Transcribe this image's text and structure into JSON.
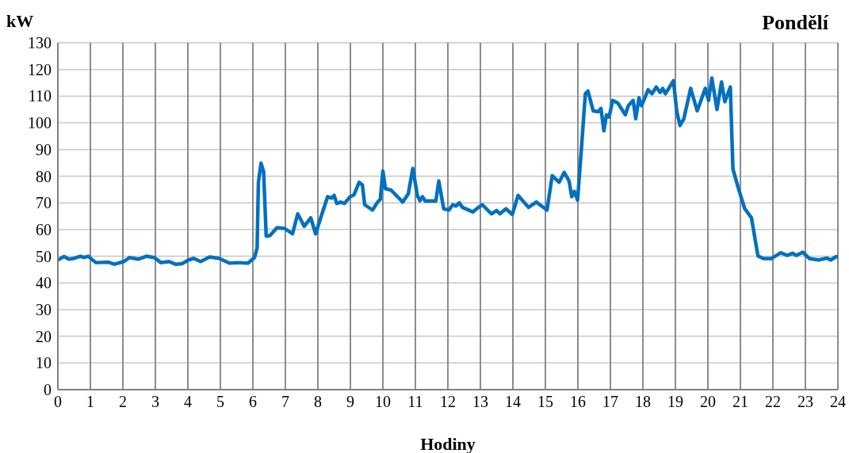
{
  "chart_data": {
    "type": "line",
    "title": "Pondělí",
    "xlabel": "Hodiny",
    "ylabel": "kW",
    "x": [
      0,
      0.19,
      0.33,
      0.5,
      0.69,
      0.8,
      0.93,
      1.17,
      1.54,
      1.74,
      2.03,
      2.2,
      2.48,
      2.72,
      2.97,
      3.17,
      3.42,
      3.62,
      3.82,
      4.02,
      4.18,
      4.39,
      4.67,
      4.96,
      5.28,
      5.52,
      5.85,
      6.05,
      6.13,
      6.17,
      6.25,
      6.33,
      6.41,
      6.53,
      6.74,
      6.98,
      7.22,
      7.38,
      7.58,
      7.78,
      7.93,
      8.14,
      8.3,
      8.42,
      8.5,
      8.58,
      8.7,
      8.82,
      8.99,
      9.11,
      9.27,
      9.37,
      9.44,
      9.68,
      9.84,
      9.92,
      10.0,
      10.08,
      10.25,
      10.61,
      10.78,
      10.92,
      11.06,
      11.14,
      11.22,
      11.3,
      11.63,
      11.72,
      11.87,
      12.03,
      12.15,
      12.25,
      12.35,
      12.45,
      12.77,
      12.94,
      13.06,
      13.34,
      13.5,
      13.6,
      13.79,
      13.98,
      14.16,
      14.48,
      14.72,
      15.05,
      15.21,
      15.42,
      15.58,
      15.73,
      15.81,
      15.89,
      15.99,
      16.11,
      16.23,
      16.31,
      16.47,
      16.63,
      16.71,
      16.8,
      16.88,
      16.96,
      17.07,
      17.23,
      17.46,
      17.55,
      17.7,
      17.78,
      17.88,
      17.96,
      18.16,
      18.28,
      18.41,
      18.53,
      18.61,
      18.69,
      18.82,
      18.94,
      19.04,
      19.14,
      19.26,
      19.47,
      19.67,
      19.92,
      20.02,
      20.12,
      20.28,
      20.42,
      20.52,
      20.69,
      20.77,
      20.93,
      21.13,
      21.34,
      21.54,
      21.71,
      21.95,
      22.24,
      22.44,
      22.6,
      22.72,
      22.92,
      23.13,
      23.41,
      23.66,
      23.78,
      23.94,
      24
    ],
    "series": [
      {
        "color": "#0070c0",
        "values": [
          48.6,
          49.9,
          48.9,
          49.2,
          50,
          49.5,
          50,
          47.6,
          47.8,
          47,
          48,
          49.5,
          48.9,
          50,
          49.5,
          47.6,
          48,
          47,
          47.2,
          48.6,
          49.2,
          48,
          49.7,
          49.2,
          47.4,
          47.6,
          47.4,
          49.5,
          53,
          77.7,
          84.9,
          81.7,
          57.5,
          57.8,
          60.7,
          60.4,
          58.4,
          65.9,
          61.2,
          64.4,
          58.4,
          66.4,
          72.3,
          71.8,
          72.8,
          69.8,
          70.3,
          69.8,
          72.3,
          73,
          77.7,
          76.7,
          69.3,
          67.3,
          70.3,
          71.3,
          81.9,
          75.3,
          74.8,
          70.3,
          73.3,
          82.9,
          72.8,
          70.8,
          72.3,
          70.7,
          70.7,
          78.2,
          67.8,
          67.3,
          69.3,
          68.8,
          70,
          68.3,
          66.6,
          68.3,
          69.3,
          65.9,
          67.1,
          65.9,
          67.8,
          65.6,
          72.8,
          68.3,
          70.3,
          67.3,
          80.2,
          77.7,
          81.4,
          78.2,
          72.3,
          74.3,
          71,
          90.6,
          110.9,
          111.9,
          104.5,
          104.2,
          105.4,
          97,
          103,
          102.2,
          108.4,
          107.4,
          103,
          106.4,
          108.4,
          101.5,
          109.4,
          106.4,
          112.4,
          110.9,
          113.4,
          111.4,
          112.9,
          110.9,
          113.4,
          115.8,
          104.5,
          99,
          101.5,
          112.9,
          104.5,
          112.9,
          108.4,
          116.8,
          105,
          115.3,
          107.9,
          113.4,
          82.7,
          75.8,
          67.9,
          64.4,
          50.1,
          49.1,
          49.1,
          51.3,
          50.3,
          51.1,
          50.3,
          51.5,
          49.1,
          48.6,
          49.3,
          48.6,
          49.8,
          49.8
        ]
      }
    ],
    "xlim": [
      0,
      24
    ],
    "xticks": [
      0,
      1,
      2,
      3,
      4,
      5,
      6,
      7,
      8,
      9,
      10,
      11,
      12,
      13,
      14,
      15,
      16,
      17,
      18,
      19,
      20,
      21,
      22,
      23,
      24
    ],
    "ylim": [
      0,
      130
    ],
    "yticks": [
      0,
      10,
      20,
      30,
      40,
      50,
      60,
      70,
      80,
      90,
      100,
      110,
      120,
      130
    ],
    "grid": true,
    "legend": false,
    "marker": "none",
    "line_style": "solid"
  }
}
